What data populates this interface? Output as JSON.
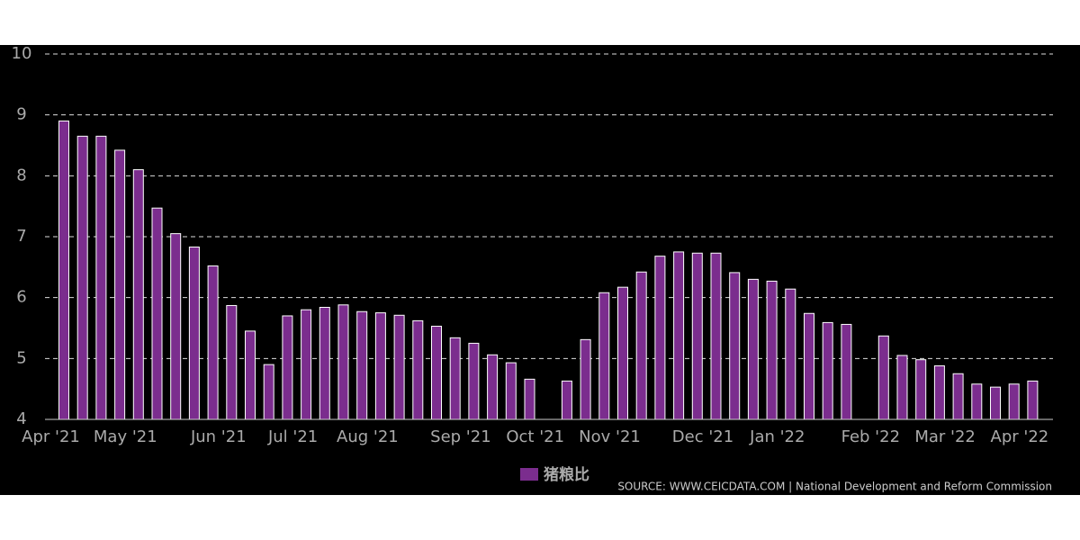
{
  "chart_data": {
    "type": "bar",
    "series": [
      {
        "name": "猪粮比",
        "color": "#7b2d8e",
        "values": [
          8.9,
          8.65,
          8.65,
          8.42,
          8.1,
          7.47,
          7.05,
          6.83,
          6.52,
          5.87,
          5.45,
          4.9,
          5.7,
          5.8,
          5.84,
          5.88,
          5.77,
          5.75,
          5.71,
          5.62,
          5.53,
          5.34,
          5.25,
          5.06,
          4.93,
          4.66,
          null,
          4.63,
          5.31,
          6.08,
          6.17,
          6.42,
          6.68,
          6.75,
          6.73,
          6.73,
          6.41,
          6.3,
          6.27,
          6.14,
          5.74,
          5.59,
          5.56,
          null,
          5.37,
          5.05,
          4.98,
          4.88,
          4.75,
          4.58,
          4.53,
          4.58,
          4.63
        ]
      }
    ],
    "categories": [
      "Apr '21",
      null,
      null,
      null,
      "May '21",
      null,
      null,
      null,
      null,
      "Jun '21",
      null,
      null,
      null,
      "Jul '21",
      null,
      null,
      null,
      "Aug '21",
      null,
      null,
      null,
      null,
      "Sep '21",
      null,
      null,
      null,
      "Oct '21",
      null,
      null,
      null,
      "Nov '21",
      null,
      null,
      null,
      null,
      "Dec '21",
      null,
      null,
      null,
      "Jan '22",
      null,
      null,
      null,
      null,
      "Feb '22",
      null,
      null,
      null,
      "Mar '22",
      null,
      null,
      null,
      "Apr '22"
    ],
    "ylim": [
      4,
      10
    ],
    "yticks": [
      4,
      5,
      6,
      7,
      8,
      9,
      10
    ],
    "grid": true,
    "source": "SOURCE: WWW.CEICDATA.COM | National Development and Reform Commission"
  }
}
